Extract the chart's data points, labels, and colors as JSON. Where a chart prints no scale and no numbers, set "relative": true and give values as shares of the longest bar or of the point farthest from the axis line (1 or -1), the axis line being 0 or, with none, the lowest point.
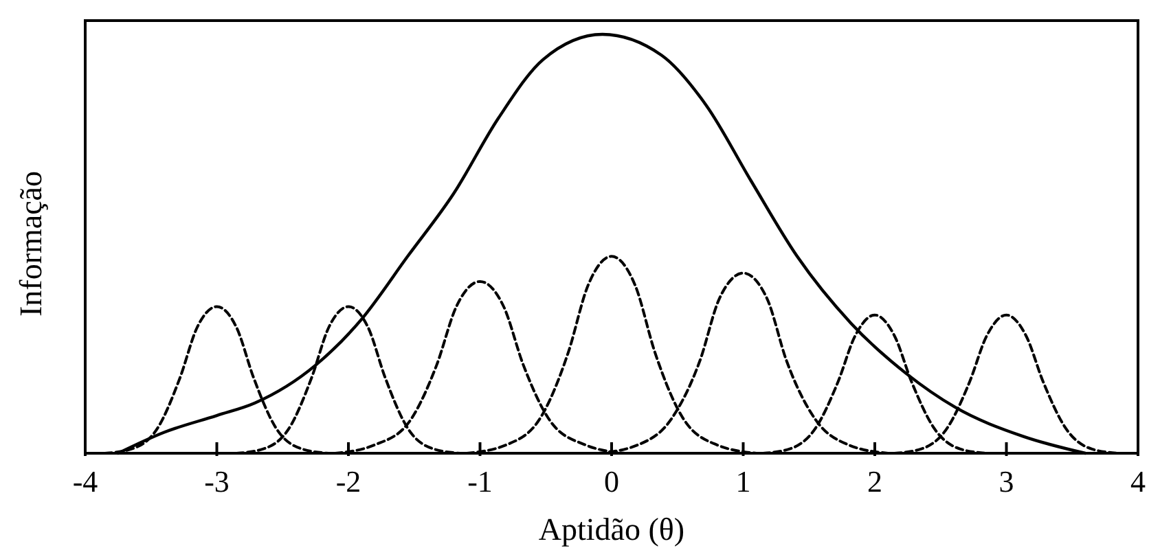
{
  "chart_data": {
    "type": "line",
    "relative": true,
    "xlabel": "Aptidão (θ)",
    "ylabel": "Informação",
    "xlim": [
      -4,
      4
    ],
    "xticks": [
      -4,
      -3,
      -2,
      -1,
      0,
      1,
      2,
      3,
      4
    ],
    "marker": "none",
    "grid": false,
    "series": [
      {
        "color": "#000000",
        "line_style": "solid",
        "x": [
          -3.75,
          -3.4,
          -3,
          -2.71,
          -2.25,
          -1.9,
          -1.55,
          -1.2,
          -0.86,
          -0.52,
          -0.07,
          0.38,
          0.72,
          1.06,
          1.41,
          1.82,
          2.24,
          2.61,
          3.13,
          3.6
        ],
        "values": [
          0,
          0.05,
          0.09,
          0.12,
          0.21,
          0.32,
          0.47,
          0.62,
          0.8,
          0.94,
          1,
          0.95,
          0.83,
          0.65,
          0.47,
          0.31,
          0.19,
          0.11,
          0.04,
          0
        ]
      },
      {
        "color": "#000000",
        "line_style": "dashed",
        "x": [
          -3.85,
          -3.65,
          -3.45,
          -3.28,
          -3.15,
          -3,
          -2.85,
          -2.72,
          -2.55,
          -2.35,
          -2.15
        ],
        "values": [
          0,
          0.01,
          0.06,
          0.18,
          0.3,
          0.35,
          0.3,
          0.18,
          0.06,
          0.01,
          0
        ]
      },
      {
        "color": "#000000",
        "line_style": "dashed",
        "x": [
          -2.85,
          -2.65,
          -2.45,
          -2.28,
          -2.15,
          -2,
          -1.85,
          -1.72,
          -1.55,
          -1.35,
          -1.15
        ],
        "values": [
          0,
          0.01,
          0.06,
          0.18,
          0.3,
          0.35,
          0.3,
          0.18,
          0.06,
          0.01,
          0
        ]
      },
      {
        "color": "#000000",
        "line_style": "dashed",
        "x": [
          -2.1,
          -1.8,
          -1.55,
          -1.33,
          -1.18,
          -1,
          -0.82,
          -0.67,
          -0.45,
          -0.2,
          0.1
        ],
        "values": [
          0,
          0.02,
          0.07,
          0.21,
          0.35,
          0.41,
          0.35,
          0.21,
          0.07,
          0.02,
          0
        ]
      },
      {
        "color": "#000000",
        "line_style": "dashed",
        "x": [
          -1.1,
          -0.8,
          -0.55,
          -0.33,
          -0.18,
          0,
          0.18,
          0.33,
          0.55,
          0.8,
          1.1
        ],
        "values": [
          0,
          0.02,
          0.08,
          0.24,
          0.4,
          0.47,
          0.4,
          0.24,
          0.08,
          0.02,
          0
        ]
      },
      {
        "color": "#000000",
        "line_style": "dashed",
        "x": [
          -0.1,
          0.2,
          0.45,
          0.67,
          0.82,
          1,
          1.18,
          1.33,
          1.55,
          1.8,
          2.1
        ],
        "values": [
          0,
          0.02,
          0.08,
          0.22,
          0.37,
          0.43,
          0.37,
          0.22,
          0.08,
          0.02,
          0
        ]
      },
      {
        "color": "#000000",
        "line_style": "dashed",
        "x": [
          1.15,
          1.35,
          1.55,
          1.72,
          1.85,
          2,
          2.15,
          2.28,
          2.45,
          2.65,
          2.85
        ],
        "values": [
          0,
          0.01,
          0.06,
          0.17,
          0.28,
          0.33,
          0.28,
          0.17,
          0.06,
          0.01,
          0
        ]
      },
      {
        "color": "#000000",
        "line_style": "dashed",
        "x": [
          2.15,
          2.35,
          2.55,
          2.72,
          2.85,
          3,
          3.15,
          3.28,
          3.45,
          3.65,
          3.85
        ],
        "values": [
          0,
          0.01,
          0.06,
          0.17,
          0.28,
          0.33,
          0.28,
          0.17,
          0.06,
          0.01,
          0
        ]
      }
    ]
  }
}
